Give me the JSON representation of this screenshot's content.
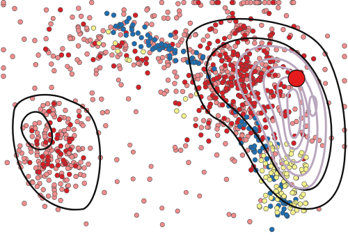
{
  "chart_data": {
    "type": "scatter",
    "title": "",
    "xlabel": "",
    "ylabel": "",
    "axes_visible": false,
    "grid": false,
    "legend": "none",
    "xlim": [
      0,
      100
    ],
    "ylim": [
      0,
      100
    ],
    "series": [
      {
        "color": "#f28d8d",
        "role": "light-red points"
      },
      {
        "color": "#d62027",
        "role": "dark-red points"
      },
      {
        "color": "#1f6fb2",
        "role": "blue points"
      },
      {
        "color": "#f3f18c",
        "role": "yellow points"
      }
    ],
    "clusters": [
      {
        "center": [
          16.0,
          40.0
        ],
        "spread": [
          5.5,
          10.0
        ],
        "n_light": 170,
        "n_dark": 45
      },
      {
        "center": [
          70.0,
          67.0
        ],
        "spread": [
          10.0,
          17.0
        ],
        "n_light": 240,
        "n_dark": 240
      },
      {
        "center": [
          35.0,
          80.0
        ],
        "spread": [
          14.0,
          8.0
        ],
        "n_light": 150,
        "n_dark": 25
      }
    ],
    "blue_points": {
      "band_top": [
        [
          30,
          94
        ],
        [
          40,
          86
        ],
        [
          50,
          80
        ],
        [
          60,
          72
        ]
      ],
      "band_right": [
        [
          68,
          55
        ],
        [
          72,
          45
        ],
        [
          76,
          35
        ],
        [
          80,
          25
        ],
        [
          82,
          12
        ]
      ],
      "count": 110
    },
    "yellow_points": {
      "region": [
        [
          74,
          42
        ],
        [
          88,
          14
        ]
      ],
      "extra": [
        [
          30,
          87
        ],
        [
          38,
          78
        ],
        [
          52,
          58
        ]
      ],
      "count": 85
    },
    "highlight_point": {
      "x": 85.2,
      "y": 68.4,
      "color": "#e41a1c"
    },
    "contours": [
      {
        "role": "outer-left",
        "color": "#111111",
        "levels": 2
      },
      {
        "role": "outer-right",
        "color": "#111111",
        "levels": 2
      },
      {
        "role": "inner-right",
        "color": "#b9a6bd",
        "levels": 6
      }
    ],
    "colors": {
      "light_red": "#f28d8d",
      "dark_red": "#d62027",
      "blue": "#1f6fb2",
      "yellow": "#f3f18c",
      "outline": "#4a4a4a",
      "contour_outer": "#111111",
      "contour_inner": "#b9a6bd"
    }
  }
}
